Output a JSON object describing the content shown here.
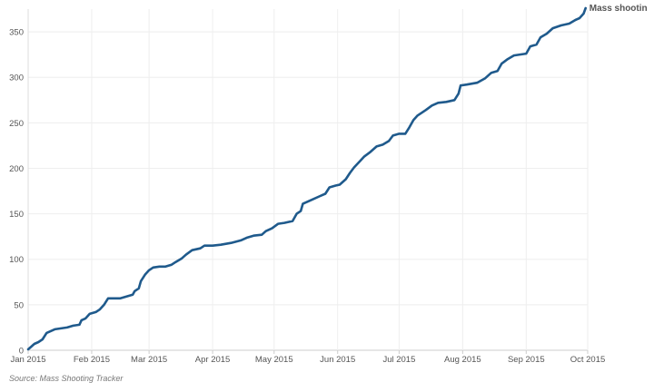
{
  "chart_data": {
    "type": "line",
    "x_labels": [
      "Jan 2015",
      "Feb 2015",
      "Mar 2015",
      "Apr 2015",
      "May 2015",
      "Jun 2015",
      "Jul 2015",
      "Aug 2015",
      "Sep 2015",
      "Oct 2015"
    ],
    "y_ticks": [
      0,
      50,
      100,
      150,
      200,
      250,
      300,
      350
    ],
    "ylim": [
      0,
      375
    ],
    "grid": true,
    "series": [
      {
        "name": "Mass shootin",
        "color": "#1f5a8c",
        "points": [
          [
            "2015-01-01",
            1
          ],
          [
            "2015-01-02",
            3
          ],
          [
            "2015-01-04",
            7
          ],
          [
            "2015-01-06",
            9
          ],
          [
            "2015-01-08",
            12
          ],
          [
            "2015-01-10",
            19
          ],
          [
            "2015-01-12",
            21
          ],
          [
            "2015-01-14",
            23
          ],
          [
            "2015-01-17",
            24
          ],
          [
            "2015-01-20",
            25
          ],
          [
            "2015-01-23",
            27
          ],
          [
            "2015-01-26",
            28
          ],
          [
            "2015-01-27",
            33
          ],
          [
            "2015-01-29",
            35
          ],
          [
            "2015-01-31",
            40
          ],
          [
            "2015-02-03",
            42
          ],
          [
            "2015-02-05",
            45
          ],
          [
            "2015-02-07",
            50
          ],
          [
            "2015-02-09",
            57
          ],
          [
            "2015-02-12",
            57
          ],
          [
            "2015-02-15",
            57
          ],
          [
            "2015-02-18",
            59
          ],
          [
            "2015-02-21",
            61
          ],
          [
            "2015-02-22",
            65
          ],
          [
            "2015-02-24",
            68
          ],
          [
            "2015-02-25",
            76
          ],
          [
            "2015-02-27",
            83
          ],
          [
            "2015-03-01",
            88
          ],
          [
            "2015-03-03",
            91
          ],
          [
            "2015-03-06",
            92
          ],
          [
            "2015-03-09",
            92
          ],
          [
            "2015-03-12",
            94
          ],
          [
            "2015-03-14",
            97
          ],
          [
            "2015-03-17",
            101
          ],
          [
            "2015-03-19",
            105
          ],
          [
            "2015-03-22",
            110
          ],
          [
            "2015-03-26",
            112
          ],
          [
            "2015-03-28",
            115
          ],
          [
            "2015-04-01",
            115
          ],
          [
            "2015-04-05",
            116
          ],
          [
            "2015-04-10",
            118
          ],
          [
            "2015-04-15",
            121
          ],
          [
            "2015-04-18",
            124
          ],
          [
            "2015-04-21",
            126
          ],
          [
            "2015-04-25",
            127
          ],
          [
            "2015-04-27",
            131
          ],
          [
            "2015-04-30",
            134
          ],
          [
            "2015-05-03",
            139
          ],
          [
            "2015-05-06",
            140
          ],
          [
            "2015-05-10",
            142
          ],
          [
            "2015-05-12",
            150
          ],
          [
            "2015-05-14",
            153
          ],
          [
            "2015-05-15",
            161
          ],
          [
            "2015-05-17",
            163
          ],
          [
            "2015-05-20",
            166
          ],
          [
            "2015-05-23",
            169
          ],
          [
            "2015-05-26",
            172
          ],
          [
            "2015-05-28",
            179
          ],
          [
            "2015-05-31",
            181
          ],
          [
            "2015-06-02",
            182
          ],
          [
            "2015-06-05",
            188
          ],
          [
            "2015-06-07",
            195
          ],
          [
            "2015-06-09",
            201
          ],
          [
            "2015-06-12",
            208
          ],
          [
            "2015-06-14",
            213
          ],
          [
            "2015-06-17",
            218
          ],
          [
            "2015-06-20",
            224
          ],
          [
            "2015-06-23",
            226
          ],
          [
            "2015-06-26",
            230
          ],
          [
            "2015-06-28",
            236
          ],
          [
            "2015-07-01",
            238
          ],
          [
            "2015-07-04",
            238
          ],
          [
            "2015-07-06",
            245
          ],
          [
            "2015-07-08",
            253
          ],
          [
            "2015-07-10",
            258
          ],
          [
            "2015-07-14",
            264
          ],
          [
            "2015-07-17",
            269
          ],
          [
            "2015-07-20",
            272
          ],
          [
            "2015-07-24",
            273
          ],
          [
            "2015-07-28",
            275
          ],
          [
            "2015-07-30",
            282
          ],
          [
            "2015-07-31",
            291
          ],
          [
            "2015-08-03",
            292
          ],
          [
            "2015-08-08",
            294
          ],
          [
            "2015-08-12",
            299
          ],
          [
            "2015-08-15",
            305
          ],
          [
            "2015-08-18",
            307
          ],
          [
            "2015-08-20",
            315
          ],
          [
            "2015-08-23",
            320
          ],
          [
            "2015-08-26",
            324
          ],
          [
            "2015-08-29",
            325
          ],
          [
            "2015-09-01",
            326
          ],
          [
            "2015-09-03",
            334
          ],
          [
            "2015-09-06",
            336
          ],
          [
            "2015-09-08",
            344
          ],
          [
            "2015-09-11",
            348
          ],
          [
            "2015-09-14",
            354
          ],
          [
            "2015-09-18",
            357
          ],
          [
            "2015-09-22",
            359
          ],
          [
            "2015-09-25",
            363
          ],
          [
            "2015-09-27",
            365
          ],
          [
            "2015-09-29",
            370
          ],
          [
            "2015-09-30",
            376
          ]
        ]
      }
    ],
    "source": "Source: Mass Shooting Tracker"
  }
}
